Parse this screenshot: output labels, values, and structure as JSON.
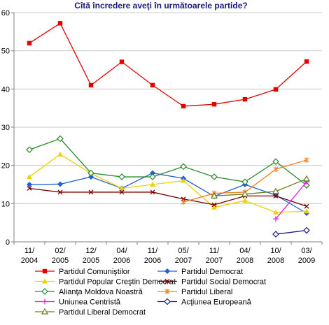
{
  "chart_data": {
    "type": "line",
    "title": "Cîtă încredere aveţi în următoarele partide?",
    "xlabel": "",
    "ylabel": "",
    "ylim": [
      0,
      60
    ],
    "yticks": [
      0,
      10,
      20,
      30,
      40,
      50,
      60
    ],
    "grid": "horizontal",
    "legend_position": "bottom",
    "categories": [
      [
        "11/",
        "2004"
      ],
      [
        "02/",
        "2005"
      ],
      [
        "12/",
        "2005"
      ],
      [
        "04/",
        "2006"
      ],
      [
        "11/",
        "2006"
      ],
      [
        "05/",
        "2007"
      ],
      [
        "11/",
        "2007"
      ],
      [
        "04/",
        "2008"
      ],
      [
        "10/",
        "2008"
      ],
      [
        "03/",
        "2009"
      ]
    ],
    "series": [
      {
        "name": "Partidul Comuniştilor",
        "color": "#e00000",
        "marker": "square",
        "values": [
          52,
          57.2,
          41,
          47.1,
          41,
          35.5,
          36,
          37.3,
          39.9,
          47.2
        ]
      },
      {
        "name": "Partidul Democrat",
        "color": "#1f5fd6",
        "marker": "diamond",
        "values": [
          15,
          15.1,
          17,
          14,
          18,
          16.6,
          11.9,
          15,
          12.2,
          7.5
        ]
      },
      {
        "name": "Partidul Popular Creştin Democrat",
        "color": "#f0d000",
        "marker": "triangle",
        "values": [
          17,
          22.9,
          17.9,
          14,
          15,
          16,
          9,
          10.8,
          7.7,
          8
        ]
      },
      {
        "name": "Partidul Social Democrat",
        "color": "#7a0000",
        "marker": "x",
        "values": [
          14,
          13,
          13,
          13,
          13,
          11.2,
          9.7,
          12,
          12,
          9.3
        ]
      },
      {
        "name": "Alianţa Moldova Noastră",
        "color": "#2a8a2a",
        "marker": "diamond-open",
        "values": [
          24.1,
          27,
          18,
          17,
          17,
          19.7,
          17,
          15.7,
          21,
          14.8
        ]
      },
      {
        "name": "Partidul Liberal",
        "color": "#f08020",
        "marker": "asterisk",
        "values": [
          null,
          null,
          null,
          null,
          null,
          10.4,
          12.7,
          13,
          19,
          21.4
        ]
      },
      {
        "name": "Uniunea Centristă",
        "color": "#e020e0",
        "marker": "plus",
        "values": [
          null,
          null,
          null,
          null,
          null,
          null,
          null,
          null,
          6,
          15.7
        ]
      },
      {
        "name": "Acţiunea Europeană",
        "color": "#1a1a80",
        "marker": "diamond-open",
        "values": [
          null,
          null,
          null,
          null,
          null,
          null,
          null,
          null,
          2,
          3
        ]
      },
      {
        "name": "Partidul Liberal Democrat",
        "color": "#6b7a18",
        "marker": "triangle-open",
        "values": [
          null,
          null,
          null,
          null,
          null,
          null,
          12,
          12.5,
          13.2,
          16.5
        ]
      }
    ]
  }
}
